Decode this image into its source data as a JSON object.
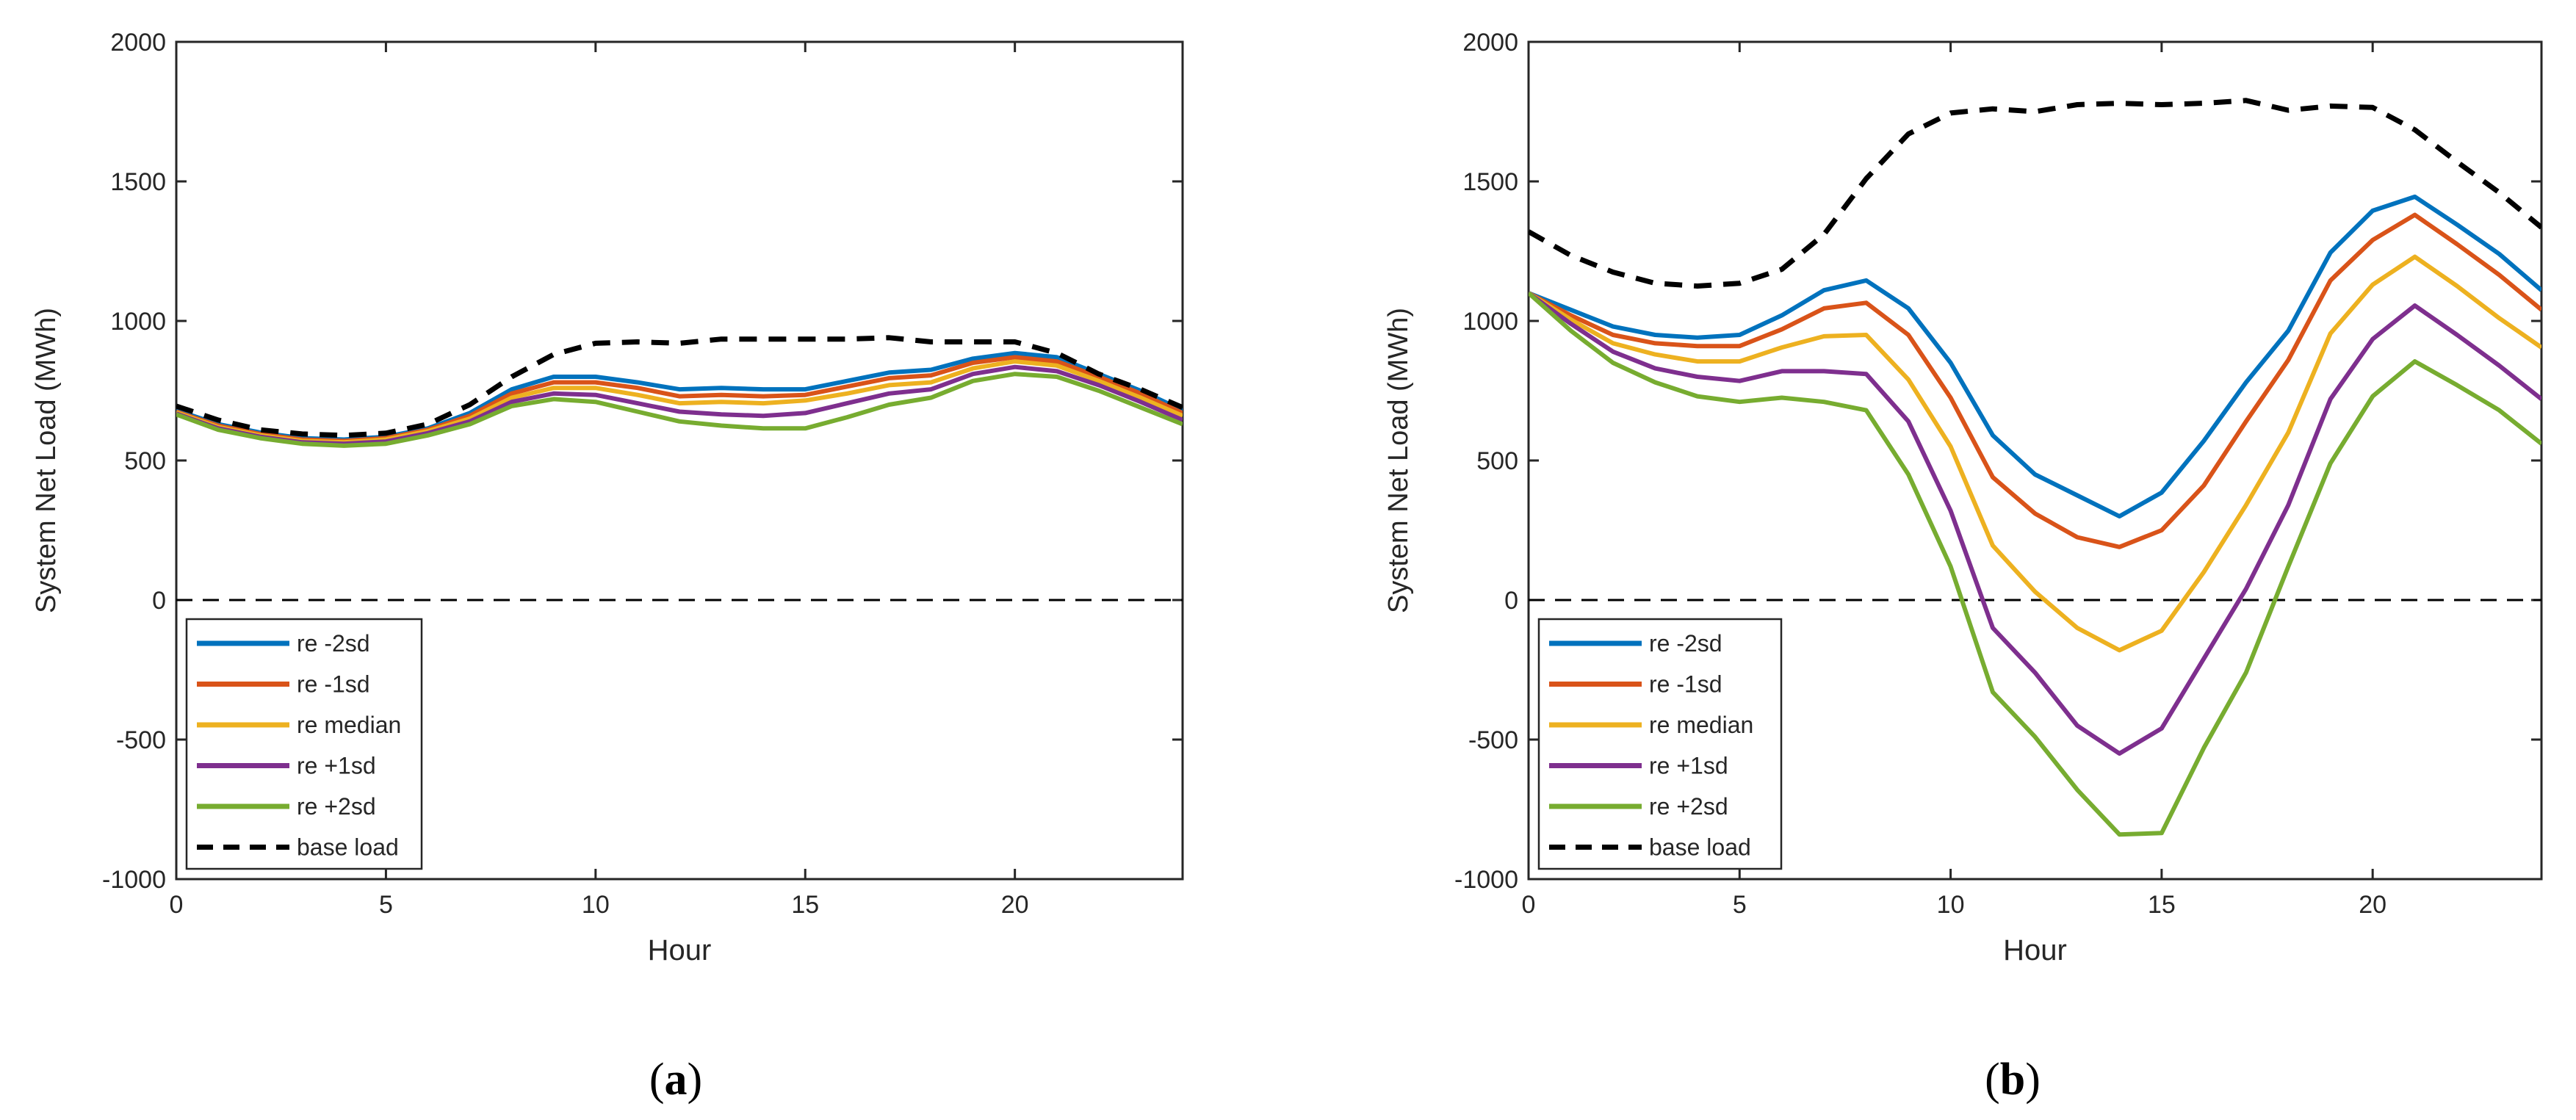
{
  "chart_data": [
    {
      "type": "line",
      "panel_label": "(a)",
      "panel_letter": "a",
      "xlabel": "Hour",
      "ylabel": "System Net Load (MWh)",
      "xlim": [
        0,
        24
      ],
      "ylim": [
        -1000,
        2000
      ],
      "xticks": [
        0,
        5,
        10,
        15,
        20
      ],
      "yticks": [
        -1000,
        -500,
        0,
        500,
        1000,
        1500,
        2000
      ],
      "zero_line": true,
      "legend_position": "bottom-left",
      "x": [
        0,
        1,
        2,
        3,
        4,
        5,
        6,
        7,
        8,
        9,
        10,
        11,
        12,
        13,
        14,
        15,
        16,
        17,
        18,
        19,
        20,
        21,
        22,
        23,
        24
      ],
      "series": [
        {
          "name": "re -2sd",
          "color": "#0072BD",
          "dash": false,
          "values": [
            680,
            630,
            600,
            580,
            575,
            585,
            615,
            670,
            755,
            800,
            800,
            780,
            755,
            760,
            755,
            755,
            785,
            815,
            825,
            865,
            885,
            870,
            810,
            750,
            680
          ]
        },
        {
          "name": "re -1sd",
          "color": "#D95319",
          "dash": false,
          "values": [
            675,
            625,
            595,
            575,
            570,
            580,
            610,
            660,
            740,
            780,
            780,
            760,
            730,
            735,
            730,
            735,
            765,
            795,
            805,
            850,
            870,
            855,
            800,
            740,
            670
          ]
        },
        {
          "name": "re median",
          "color": "#EDB120",
          "dash": false,
          "values": [
            672,
            620,
            590,
            570,
            565,
            575,
            605,
            650,
            725,
            760,
            760,
            735,
            705,
            710,
            705,
            715,
            740,
            770,
            780,
            830,
            855,
            840,
            785,
            725,
            660
          ]
        },
        {
          "name": "re +1sd",
          "color": "#7E2F8E",
          "dash": false,
          "values": [
            668,
            615,
            585,
            565,
            560,
            568,
            598,
            640,
            710,
            740,
            735,
            705,
            675,
            665,
            660,
            670,
            705,
            740,
            755,
            810,
            835,
            820,
            770,
            710,
            645
          ]
        },
        {
          "name": "re +2sd",
          "color": "#77AC30",
          "dash": false,
          "values": [
            665,
            610,
            580,
            560,
            553,
            560,
            590,
            630,
            695,
            720,
            710,
            675,
            640,
            625,
            615,
            615,
            655,
            700,
            725,
            785,
            810,
            800,
            750,
            690,
            630
          ]
        },
        {
          "name": "base load",
          "color": "#000000",
          "dash": true,
          "values": [
            695,
            645,
            610,
            595,
            590,
            598,
            630,
            700,
            800,
            880,
            920,
            925,
            920,
            935,
            935,
            935,
            935,
            940,
            925,
            925,
            925,
            885,
            810,
            755,
            690
          ]
        }
      ]
    },
    {
      "type": "line",
      "panel_label": "(b)",
      "panel_letter": "b",
      "xlabel": "Hour",
      "ylabel": "System Net Load (MWh)",
      "xlim": [
        0,
        24
      ],
      "ylim": [
        -1000,
        2000
      ],
      "xticks": [
        0,
        5,
        10,
        15,
        20
      ],
      "yticks": [
        -1000,
        -500,
        0,
        500,
        1000,
        1500,
        2000
      ],
      "zero_line": true,
      "legend_position": "bottom-left",
      "x": [
        0,
        1,
        2,
        3,
        4,
        5,
        6,
        7,
        8,
        9,
        10,
        11,
        12,
        13,
        14,
        15,
        16,
        17,
        18,
        19,
        20,
        21,
        22,
        23,
        24
      ],
      "series": [
        {
          "name": "re -2sd",
          "color": "#0072BD",
          "dash": false,
          "values": [
            1100,
            1040,
            980,
            950,
            940,
            950,
            1020,
            1110,
            1145,
            1045,
            850,
            590,
            450,
            375,
            300,
            385,
            570,
            780,
            965,
            1245,
            1395,
            1445,
            1345,
            1240,
            1110
          ]
        },
        {
          "name": "re -1sd",
          "color": "#D95319",
          "dash": false,
          "values": [
            1100,
            1020,
            950,
            920,
            910,
            910,
            970,
            1045,
            1065,
            950,
            725,
            440,
            310,
            225,
            190,
            250,
            410,
            640,
            860,
            1145,
            1290,
            1380,
            1275,
            1165,
            1040
          ]
        },
        {
          "name": "re median",
          "color": "#EDB120",
          "dash": false,
          "values": [
            1100,
            1005,
            920,
            880,
            855,
            855,
            905,
            945,
            950,
            790,
            550,
            195,
            30,
            -100,
            -180,
            -110,
            100,
            340,
            600,
            955,
            1130,
            1230,
            1125,
            1010,
            905
          ]
        },
        {
          "name": "re +1sd",
          "color": "#7E2F8E",
          "dash": false,
          "values": [
            1100,
            990,
            890,
            830,
            800,
            785,
            820,
            820,
            810,
            640,
            320,
            -100,
            -260,
            -450,
            -550,
            -460,
            -210,
            40,
            340,
            720,
            935,
            1055,
            950,
            840,
            720
          ]
        },
        {
          "name": "re +2sd",
          "color": "#77AC30",
          "dash": false,
          "values": [
            1100,
            965,
            850,
            780,
            730,
            710,
            725,
            710,
            680,
            450,
            120,
            -330,
            -490,
            -680,
            -840,
            -835,
            -530,
            -260,
            120,
            490,
            730,
            855,
            770,
            680,
            560
          ]
        },
        {
          "name": "base load",
          "color": "#000000",
          "dash": true,
          "values": [
            1320,
            1235,
            1175,
            1135,
            1125,
            1135,
            1185,
            1310,
            1510,
            1670,
            1745,
            1760,
            1750,
            1775,
            1780,
            1775,
            1780,
            1790,
            1755,
            1770,
            1765,
            1685,
            1570,
            1460,
            1335
          ]
        }
      ]
    }
  ]
}
